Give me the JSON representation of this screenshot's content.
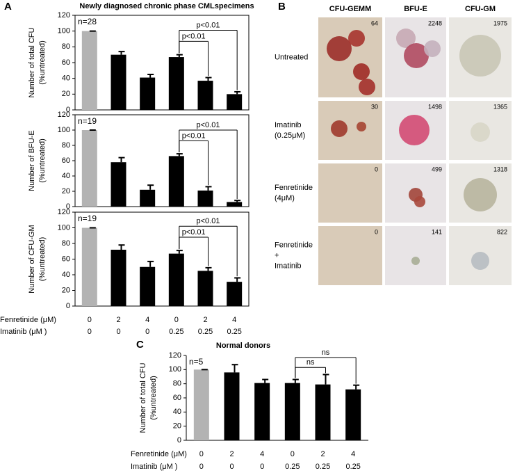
{
  "panel_labels": [
    "A",
    "B",
    "C"
  ],
  "chart_data": [
    {
      "type": "bar",
      "title": "Newly diagnosed chronic phase CMLspecimens",
      "ylabel": [
        "Number of total CFU",
        "(%untreated)"
      ],
      "categories": [
        "0",
        "2",
        "4",
        "0",
        "2",
        "4"
      ],
      "values": [
        100,
        70,
        41,
        67,
        37,
        20
      ],
      "errors": [
        0,
        4,
        4,
        3,
        4,
        3
      ],
      "colors": [
        "#b3b3b3",
        "#000000",
        "#000000",
        "#000000",
        "#000000",
        "#000000"
      ],
      "ylim": [
        0,
        120
      ],
      "yticks": [
        0,
        20,
        40,
        60,
        80,
        100,
        120
      ],
      "annotations": [
        "n=28",
        "p<0.01",
        "p<0.01"
      ]
    },
    {
      "type": "bar",
      "ylabel": [
        "Number of BFU-E",
        "(%untreated)"
      ],
      "categories": [
        "0",
        "2",
        "4",
        "0",
        "2",
        "4"
      ],
      "values": [
        100,
        58,
        22,
        66,
        21,
        6
      ],
      "errors": [
        0,
        6,
        6,
        3,
        5,
        2
      ],
      "colors": [
        "#b3b3b3",
        "#000000",
        "#000000",
        "#000000",
        "#000000",
        "#000000"
      ],
      "ylim": [
        0,
        120
      ],
      "yticks": [
        0,
        20,
        40,
        60,
        80,
        100,
        120
      ],
      "annotations": [
        "n=19",
        "p<0.01",
        "p<0.01"
      ]
    },
    {
      "type": "bar",
      "ylabel": [
        "Number of CFU-GM",
        "(%untreated)"
      ],
      "categories": [
        "0",
        "2",
        "4",
        "0",
        "2",
        "4"
      ],
      "values": [
        100,
        72,
        50,
        67,
        45,
        31
      ],
      "errors": [
        0,
        6,
        7,
        4,
        4,
        5
      ],
      "colors": [
        "#b3b3b3",
        "#000000",
        "#000000",
        "#000000",
        "#000000",
        "#000000"
      ],
      "ylim": [
        0,
        120
      ],
      "yticks": [
        0,
        20,
        40,
        60,
        80,
        100,
        120
      ],
      "annotations": [
        "n=19",
        "p<0.01",
        "p<0.01"
      ],
      "x_rows": [
        {
          "label": "Fenretinide (μM)",
          "values": [
            "0",
            "2",
            "4",
            "0",
            "2",
            "4"
          ]
        },
        {
          "label": "Imatinib (μM )",
          "values": [
            "0",
            "0",
            "0",
            "0.25",
            "0.25",
            "0.25"
          ]
        }
      ]
    },
    {
      "type": "bar",
      "title": "Normal donors",
      "ylabel": [
        "Number of total CFU",
        "(%untreated)"
      ],
      "categories": [
        "0",
        "2",
        "4",
        "0",
        "2",
        "4"
      ],
      "values": [
        100,
        96,
        81,
        81,
        79,
        72
      ],
      "errors": [
        0,
        11,
        5,
        5,
        14,
        6
      ],
      "colors": [
        "#b3b3b3",
        "#000000",
        "#000000",
        "#000000",
        "#000000",
        "#000000"
      ],
      "ylim": [
        0,
        120
      ],
      "yticks": [
        0,
        20,
        40,
        60,
        80,
        100,
        120
      ],
      "annotations": [
        "n=5",
        "ns",
        "ns"
      ],
      "x_rows": [
        {
          "label": "Fenretinide (μM)",
          "values": [
            "0",
            "2",
            "4",
            "0",
            "2",
            "4"
          ]
        },
        {
          "label": "Imatinib (μM )",
          "values": [
            "0",
            "0",
            "0",
            "0.25",
            "0.25",
            "0.25"
          ]
        }
      ]
    }
  ],
  "panel_b": {
    "columns": [
      "CFU-GEMM",
      "BFU-E",
      "CFU-GM"
    ],
    "rows": [
      {
        "label": [
          "Untreated"
        ],
        "counts": [
          64,
          2248,
          1975
        ]
      },
      {
        "label": [
          "Imatinib",
          "(0.25μM)"
        ],
        "counts": [
          30,
          1498,
          1365
        ]
      },
      {
        "label": [
          "Fenretinide",
          "(4μM)"
        ],
        "counts": [
          0,
          499,
          1318
        ]
      },
      {
        "label": [
          "Fenretinide",
          "+",
          "Imatinib"
        ],
        "counts": [
          0,
          141,
          822
        ]
      }
    ]
  }
}
